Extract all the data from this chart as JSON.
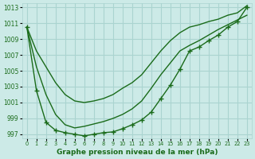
{
  "xlabel": "Graphe pression niveau de la mer (hPa)",
  "bg_color": "#cceae7",
  "grid_color": "#aad4d0",
  "line_color": "#1a6b1a",
  "x": [
    0,
    1,
    2,
    3,
    4,
    5,
    6,
    7,
    8,
    9,
    10,
    11,
    12,
    13,
    14,
    15,
    16,
    17,
    18,
    19,
    20,
    21,
    22,
    23
  ],
  "line_top": [
    1010.5,
    1007.5,
    1005.5,
    1003.5,
    1002.0,
    1001.2,
    1001.0,
    1001.2,
    1001.5,
    1002.0,
    1002.8,
    1003.5,
    1004.5,
    1006.0,
    1007.5,
    1008.8,
    1009.8,
    1010.5,
    1010.8,
    1011.2,
    1011.5,
    1012.0,
    1012.3,
    1013.2
  ],
  "line_mid": [
    1010.5,
    1005.5,
    1002.0,
    999.5,
    998.2,
    997.8,
    998.0,
    998.3,
    998.6,
    999.0,
    999.5,
    1000.2,
    1001.2,
    1002.8,
    1004.5,
    1006.0,
    1007.5,
    1008.2,
    1008.8,
    1009.5,
    1010.2,
    1010.8,
    1011.4,
    1012.0
  ],
  "line_bot": [
    1010.5,
    1002.5,
    998.5,
    997.5,
    997.2,
    997.0,
    996.8,
    997.0,
    997.2,
    997.3,
    997.7,
    998.2,
    998.8,
    999.8,
    1001.5,
    1003.2,
    1005.2,
    1007.5,
    1008.0,
    1008.8,
    1009.5,
    1010.5,
    1011.2,
    1013.0
  ],
  "ylim": [
    996.5,
    1013.5
  ],
  "yticks": [
    997,
    999,
    1001,
    1003,
    1005,
    1007,
    1009,
    1011,
    1013
  ]
}
